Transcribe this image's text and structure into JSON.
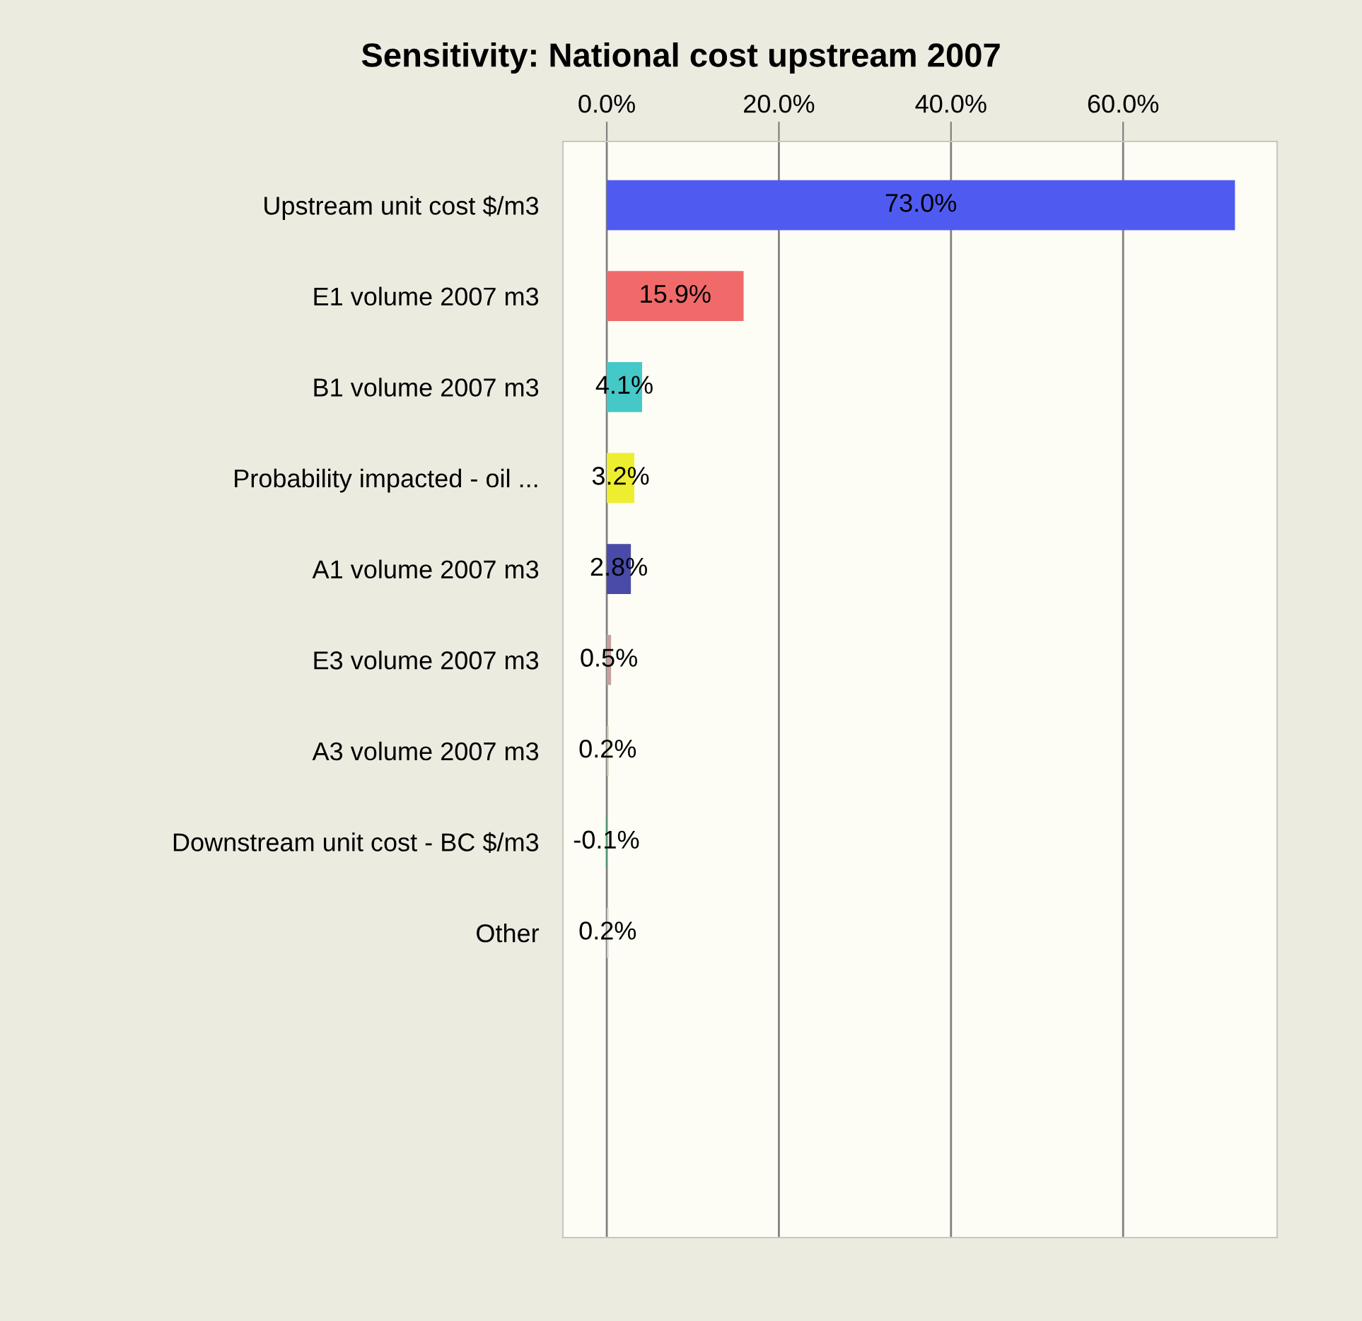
{
  "chart_data": {
    "type": "bar",
    "orientation": "horizontal",
    "title": "Sensitivity: National cost upstream 2007",
    "categories": [
      "Upstream unit cost $/m3",
      "E1 volume 2007 m3",
      "B1 volume 2007 m3",
      "Probability impacted - oil ...",
      "A1 volume 2007 m3",
      "E3 volume 2007 m3",
      "A3 volume 2007 m3",
      "Downstream unit cost - BC $/m3",
      "Other"
    ],
    "values": [
      73.0,
      15.9,
      4.1,
      3.2,
      2.8,
      0.5,
      0.2,
      -0.1,
      0.2
    ],
    "colors": [
      "#4f5bf0",
      "#f06a6a",
      "#45c8c8",
      "#eeee30",
      "#4a4aa8",
      "#c8a0a0",
      "#c0c8a0",
      "#40a070",
      "#d0d0d0"
    ],
    "value_labels": [
      "73.0%",
      "15.9%",
      "4.1%",
      "3.2%",
      "2.8%",
      "0.5%",
      "0.2%",
      "-0.1%",
      "0.2%"
    ],
    "xlim": [
      -5.1,
      77.9
    ],
    "xticks": [
      {
        "value": 0,
        "label": "0.0%"
      },
      {
        "value": 20,
        "label": "20.0%"
      },
      {
        "value": 40,
        "label": "40.0%"
      },
      {
        "value": 60,
        "label": "60.0%"
      }
    ],
    "grid": "x",
    "legend": false
  }
}
